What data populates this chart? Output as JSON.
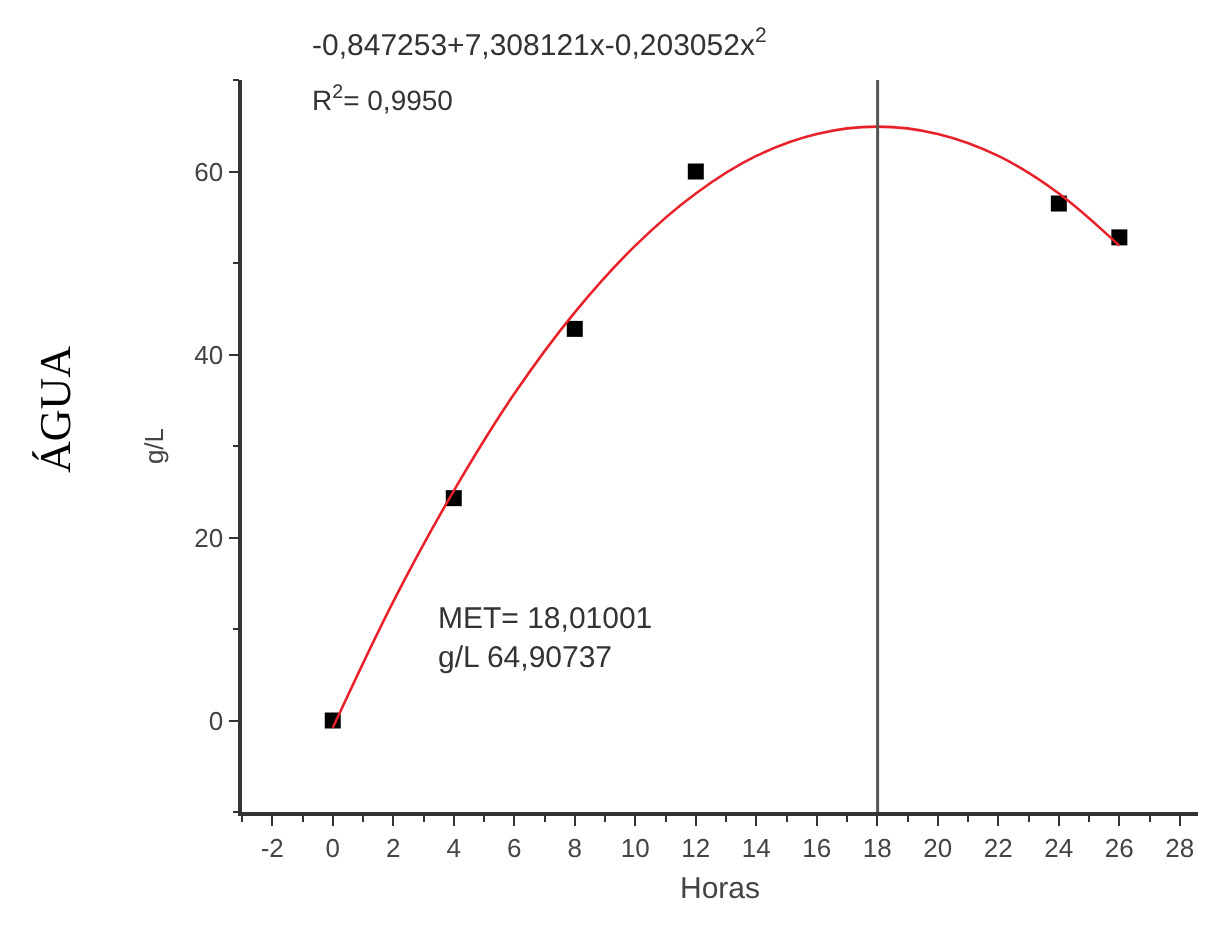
{
  "chart_data": {
    "type": "scatter",
    "xlabel": "Horas",
    "ylabel": "g/L",
    "annotations": [
      "ÁGUA",
      "-0,847253+7,308121x-0,203052x$^{2}$",
      "R$^{2}$= 0,9950",
      "MET= 18,01001\ng/L 64,90737"
    ],
    "x": [
      0,
      4,
      8,
      12,
      24,
      26
    ],
    "series": [
      {
        "color": "#000000",
        "marker": "square",
        "values": [
          0,
          24.3,
          42.8,
          60,
          56.5,
          52.8
        ]
      },
      {
        "type": "line",
        "color": "#e8202a",
        "marker": "none",
        "x": [
          0,
          2,
          4,
          6,
          8,
          10,
          12,
          14,
          16,
          18,
          20,
          22,
          24,
          26
        ],
        "values": [
          -0.8,
          13.0,
          25.1,
          35.7,
          44.6,
          51.9,
          57.6,
          61.7,
          64.1,
          64.9,
          64.1,
          61.7,
          57.6,
          51.9
        ]
      }
    ],
    "ref_lines": [
      {
        "axis": "x",
        "value": 18.01,
        "color": "#555555"
      }
    ],
    "xlim": [
      -3,
      28.6
    ],
    "xticks": [
      -2,
      0,
      2,
      4,
      6,
      8,
      10,
      12,
      14,
      16,
      18,
      20,
      22,
      24,
      26,
      28
    ],
    "ylim": [
      -10,
      70
    ],
    "yticks": [
      0,
      20,
      40,
      60
    ]
  }
}
